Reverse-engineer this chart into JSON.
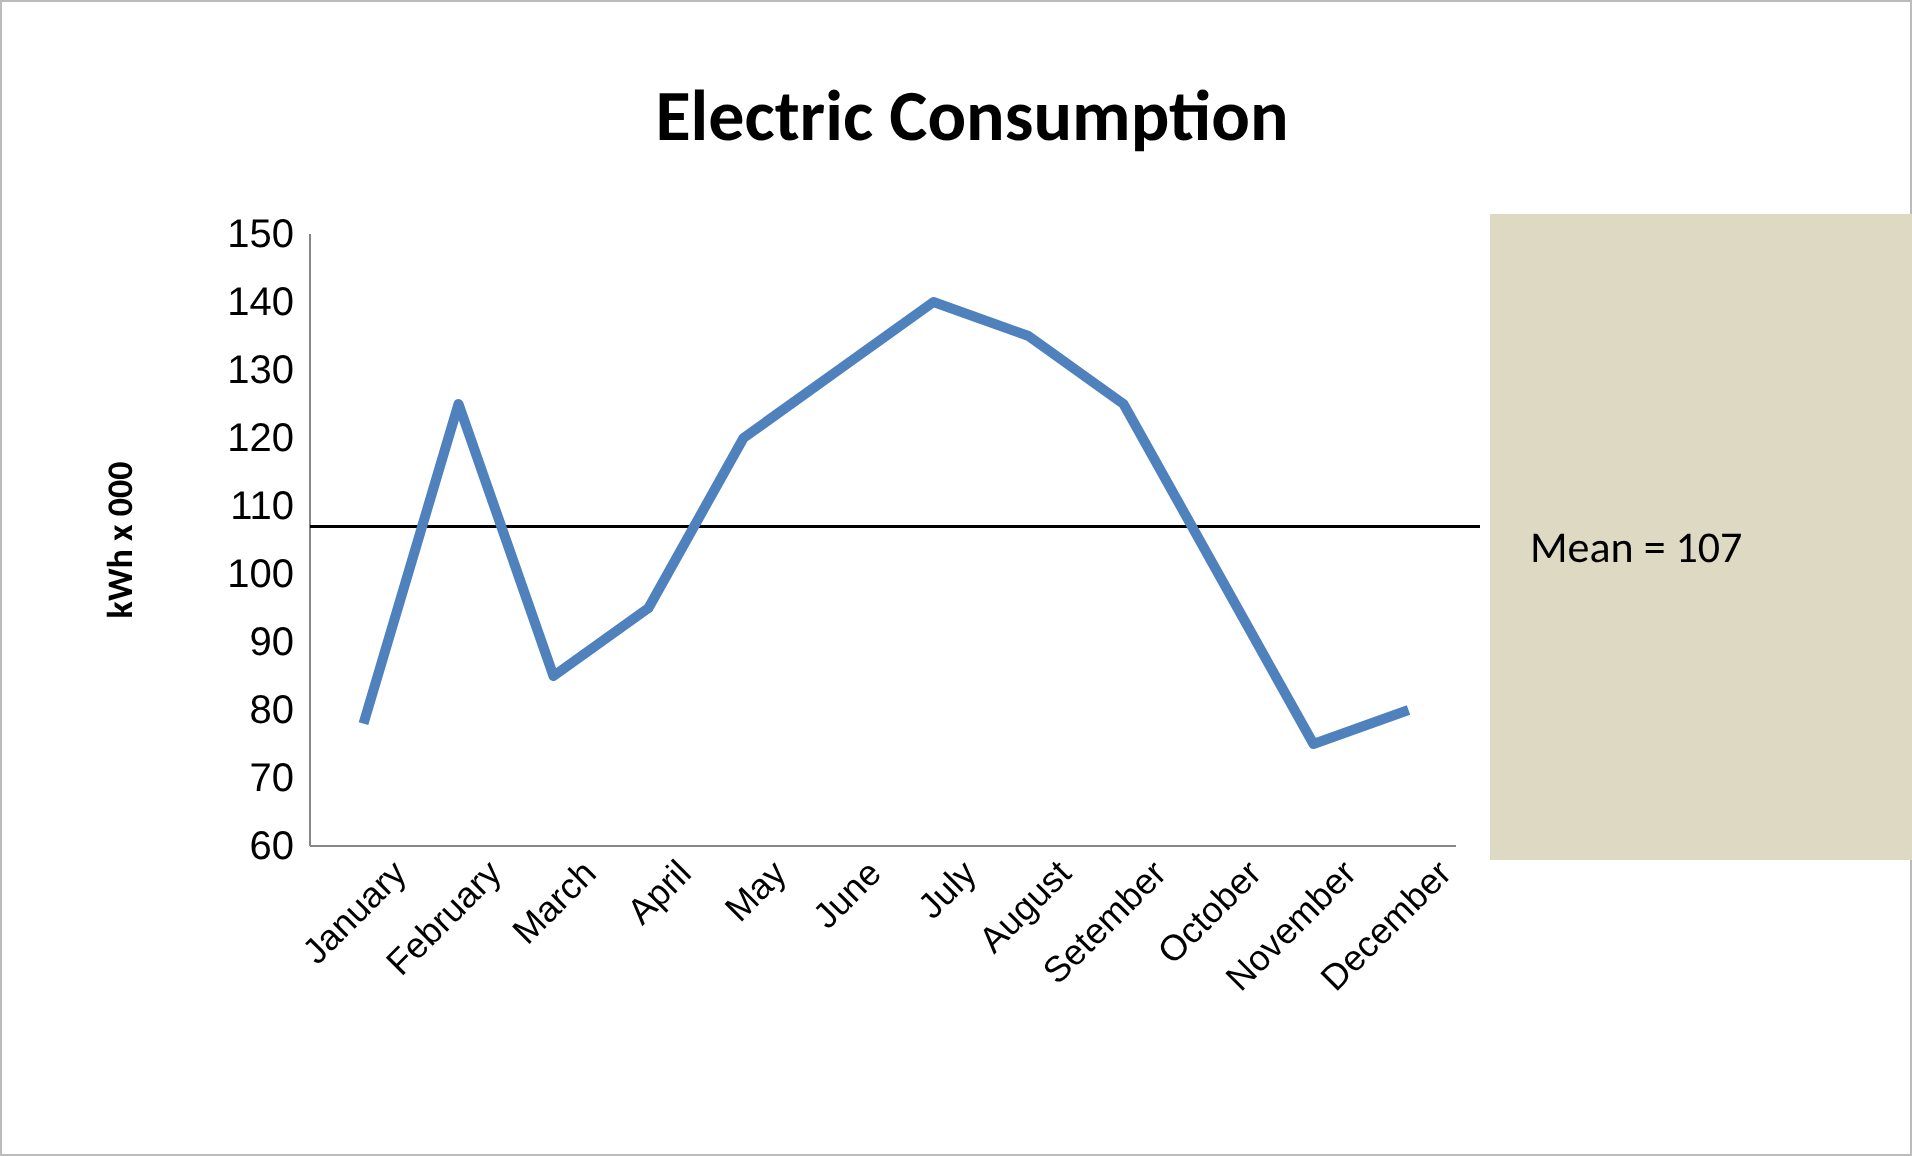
{
  "chart_data": {
    "type": "line",
    "title": "Electric Consumption",
    "ylabel": "kWh x 000",
    "categories": [
      "January",
      "February",
      "March",
      "April",
      "May",
      "June",
      "July",
      "August",
      "Setember",
      "October",
      "November",
      "December"
    ],
    "series": [
      {
        "color": "#4f81bd",
        "values": [
          78,
          125,
          85,
          95,
          120,
          130,
          140,
          135,
          125,
          100,
          75,
          80
        ]
      }
    ],
    "ylim": [
      60,
      150
    ],
    "yticks": [
      60,
      70,
      80,
      90,
      100,
      110,
      120,
      130,
      140,
      150
    ],
    "ref_lines": [
      {
        "axis": "y",
        "value": 107,
        "label": "Mean = 107",
        "color": "#000000"
      }
    ],
    "grid": false,
    "marker": "none",
    "line_style": "solid"
  }
}
